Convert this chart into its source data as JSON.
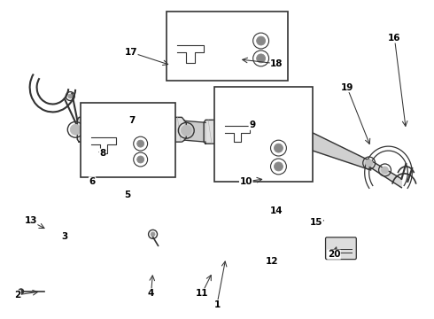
{
  "bg_color": "#ffffff",
  "line_color": "#333333",
  "label_color": "#000000",
  "figsize": [
    4.9,
    3.6
  ],
  "dpi": 100,
  "label_data": [
    [
      "1",
      255,
      68,
      245,
      15
    ],
    [
      "2",
      45,
      30,
      18,
      26
    ],
    [
      "3",
      78,
      98,
      72,
      92
    ],
    [
      "4",
      172,
      52,
      170,
      28
    ],
    [
      "5",
      138,
      132,
      143,
      140
    ],
    [
      "6",
      104,
      147,
      103,
      155
    ],
    [
      "7",
      148,
      217,
      148,
      224
    ],
    [
      "8",
      118,
      188,
      115,
      187
    ],
    [
      "9",
      285,
      212,
      285,
      219
    ],
    [
      "10",
      300,
      158,
      278,
      155
    ],
    [
      "11",
      240,
      52,
      228,
      28
    ],
    [
      "12",
      312,
      62,
      308,
      64
    ],
    [
      "13",
      52,
      100,
      33,
      110
    ],
    [
      "14",
      307,
      117,
      313,
      122
    ],
    [
      "15",
      370,
      112,
      358,
      108
    ],
    [
      "16",
      460,
      214,
      447,
      318
    ],
    [
      "17",
      193,
      287,
      147,
      302
    ],
    [
      "18",
      270,
      294,
      313,
      289
    ],
    [
      "19",
      420,
      194,
      393,
      262
    ],
    [
      "20",
      382,
      84,
      378,
      72
    ]
  ]
}
